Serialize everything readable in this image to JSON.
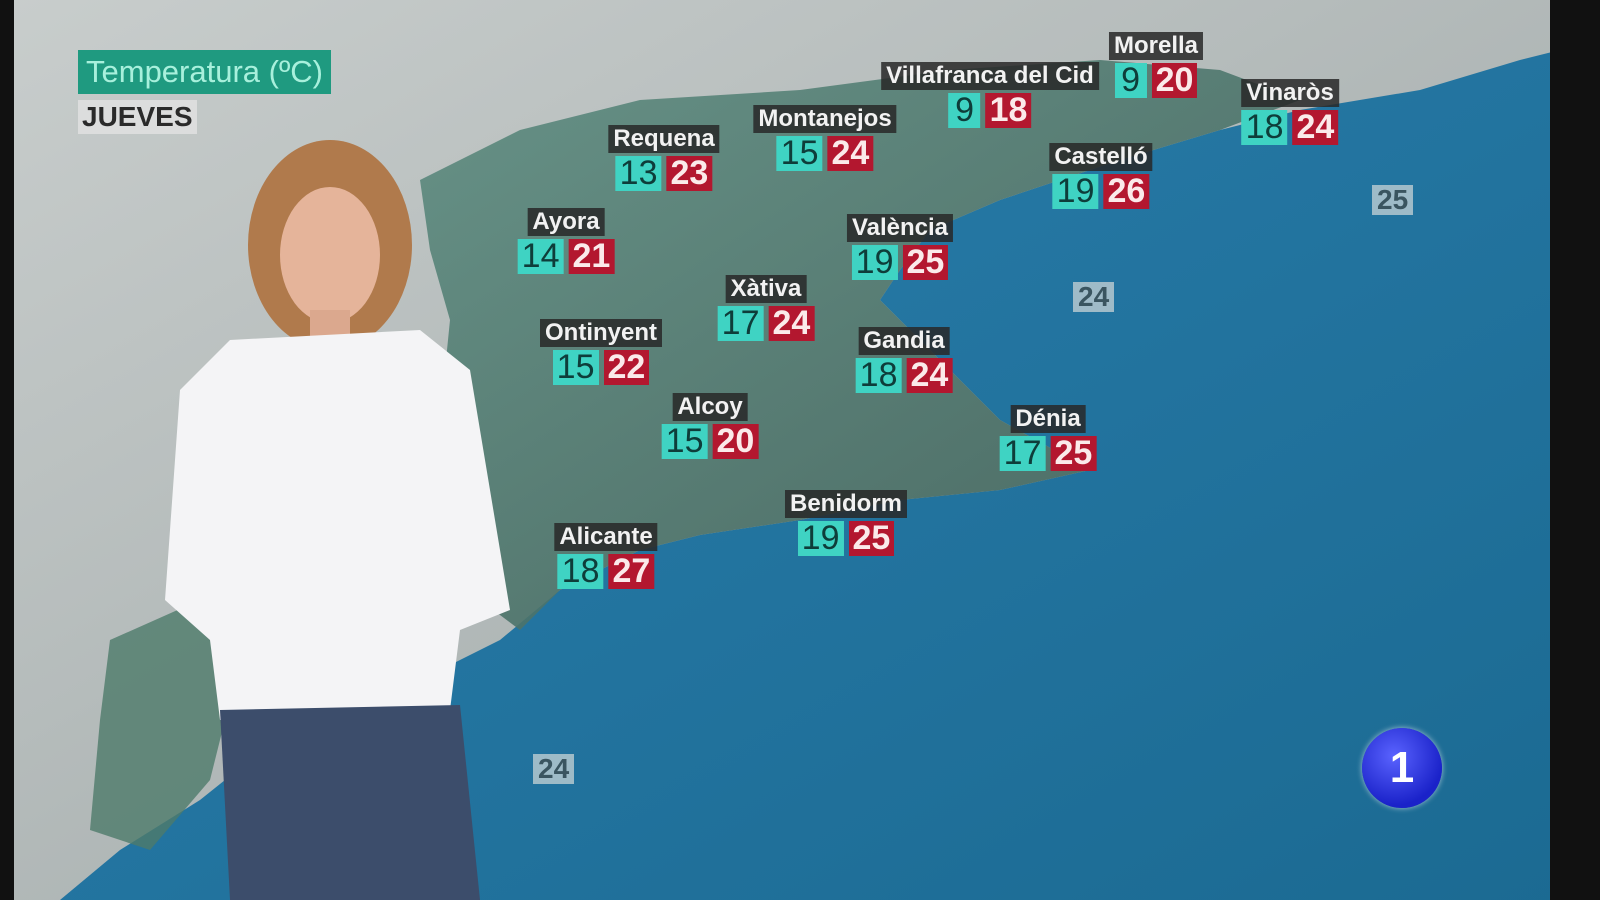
{
  "header": {
    "title": "Temperatura (ºC)",
    "day": "JUEVES"
  },
  "colors": {
    "min_box": "#3fd3c3",
    "max_box": "#b3172f",
    "title_bg": "#1f9a80",
    "sea": "#1d6f9e"
  },
  "cities": [
    {
      "name": "Requena",
      "min": "13",
      "max": "23"
    },
    {
      "name": "Montanejos",
      "min": "15",
      "max": "24"
    },
    {
      "name": "Villafranca del Cid",
      "min": "9",
      "max": "18"
    },
    {
      "name": "Morella",
      "min": "9",
      "max": "20"
    },
    {
      "name": "Vinaròs",
      "min": "18",
      "max": "24"
    },
    {
      "name": "Castelló",
      "min": "19",
      "max": "26"
    },
    {
      "name": "Ayora",
      "min": "14",
      "max": "21"
    },
    {
      "name": "València",
      "min": "19",
      "max": "25"
    },
    {
      "name": "Xàtiva",
      "min": "17",
      "max": "24"
    },
    {
      "name": "Ontinyent",
      "min": "15",
      "max": "22"
    },
    {
      "name": "Gandia",
      "min": "18",
      "max": "24"
    },
    {
      "name": "Alcoy",
      "min": "15",
      "max": "20"
    },
    {
      "name": "Dénia",
      "min": "17",
      "max": "25"
    },
    {
      "name": "Benidorm",
      "min": "19",
      "max": "25"
    },
    {
      "name": "Alicante",
      "min": "18",
      "max": "27"
    }
  ],
  "sea_temps": [
    "25",
    "24",
    "24"
  ],
  "logo": {
    "text": "1",
    "icon": "channel-1-logo"
  }
}
